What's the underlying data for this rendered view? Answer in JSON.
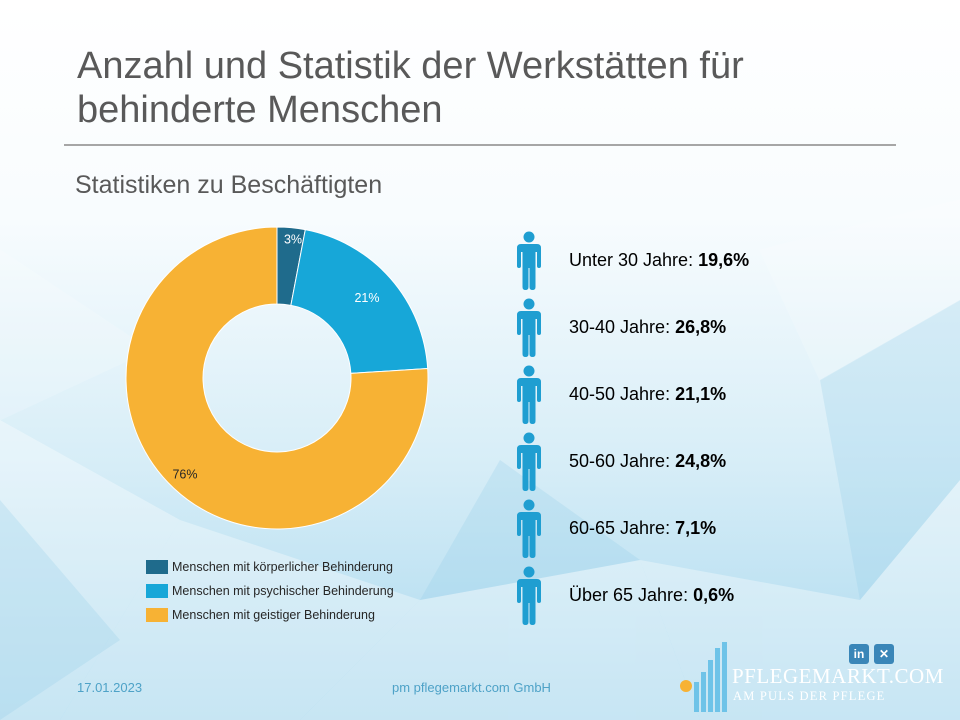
{
  "slide": {
    "title": "Anzahl und Statistik der Werkstätten für behinderte Menschen",
    "subtitle": "Statistiken zu Beschäftigten"
  },
  "chart_data": {
    "type": "pie",
    "variant": "donut",
    "categories": [
      "Menschen mit körperlicher Behinderung",
      "Menschen mit psychischer Behinderung",
      "Menschen mit geistiger Behinderung"
    ],
    "values": [
      3,
      21,
      76
    ],
    "labels": [
      "3%",
      "21%",
      "76%"
    ],
    "colors": [
      "#1f6b8c",
      "#17a7d8",
      "#f7b234"
    ],
    "legend_position": "bottom"
  },
  "age_stats": [
    {
      "label": "Unter 30 Jahre:",
      "value": "19,6%"
    },
    {
      "label": "30-40 Jahre:",
      "value": "26,8%"
    },
    {
      "label": "40-50 Jahre:",
      "value": "21,1%"
    },
    {
      "label": "50-60 Jahre:",
      "value": "24,8%"
    },
    {
      "label": "60-65 Jahre:",
      "value": "7,1%"
    },
    {
      "label": "Über 65 Jahre:",
      "value": "0,6%"
    }
  ],
  "icons": {
    "age_icon": "person-icon",
    "social": [
      "linkedin-icon",
      "xing-icon"
    ],
    "linkedin_glyph": "in",
    "xing_glyph": "✕"
  },
  "colors": {
    "icon": "#1f9ed1",
    "footer_text": "#4ea2c7"
  },
  "footer": {
    "date": "17.01.2023",
    "company": "pm pflegemarkt.com GmbH"
  },
  "brand": {
    "name": "PFLEGEMARKT.COM",
    "tagline": "AM PULS DER PFLEGE"
  }
}
